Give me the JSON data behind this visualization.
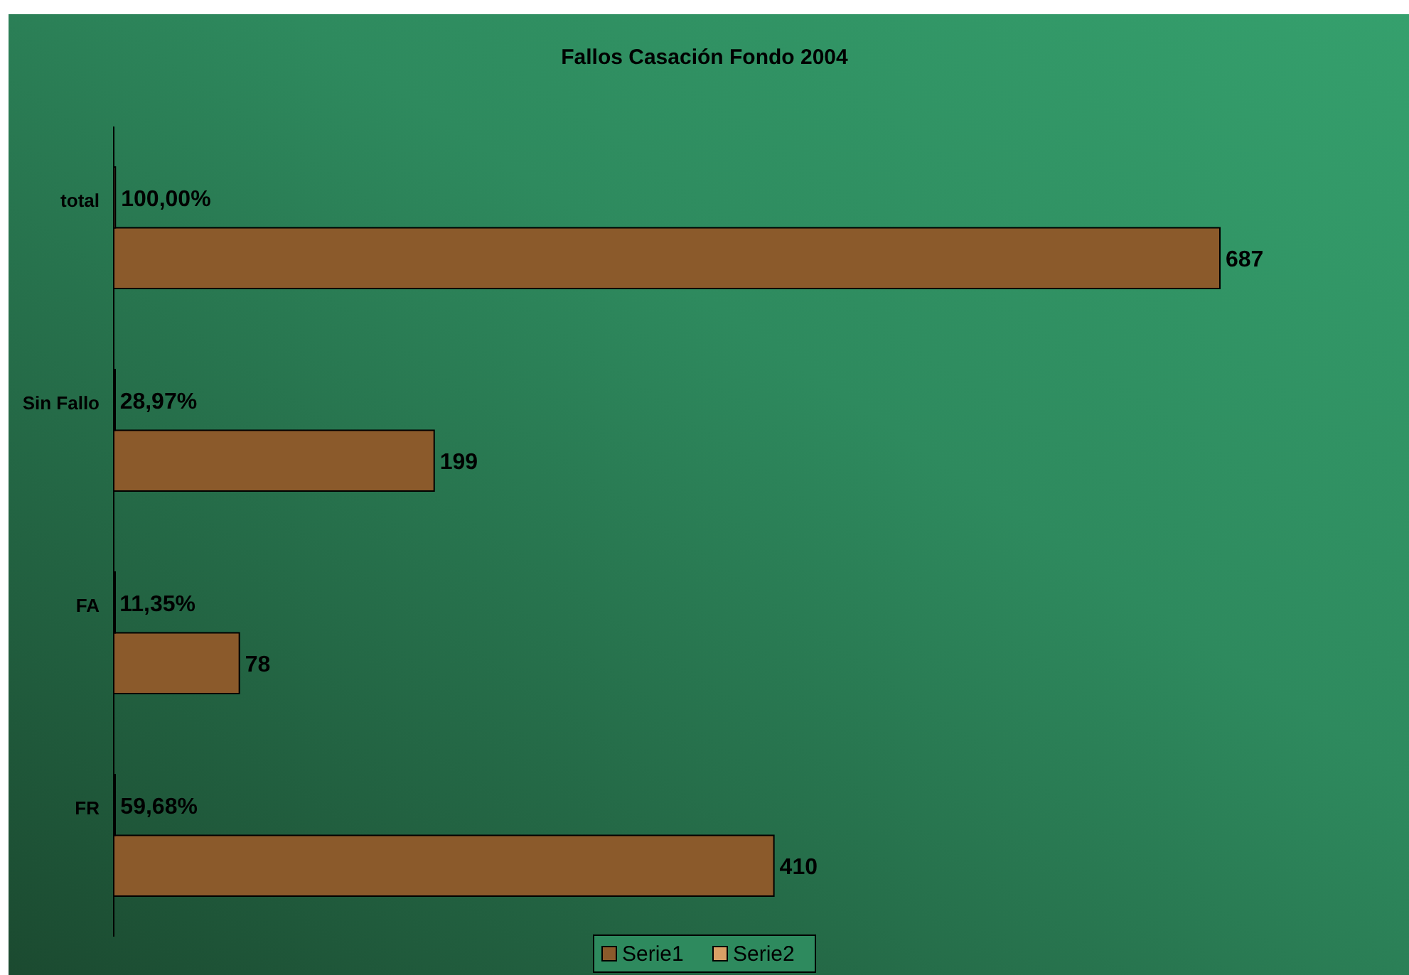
{
  "chart_data": {
    "type": "bar",
    "orientation": "horizontal",
    "title": "Fallos Casación Fondo 2004",
    "categories": [
      "total",
      "Sin Fallo",
      "FA",
      "FR"
    ],
    "tick_labels": "y",
    "legend": "bottom",
    "grid": false,
    "series": [
      {
        "name": "Serie1",
        "color": "#8b5a2b",
        "values": [
          687,
          199,
          78,
          410
        ],
        "value_labels": [
          "687",
          "199",
          "78",
          "410"
        ]
      },
      {
        "name": "Serie2",
        "color": "#d9a066",
        "values": [
          1,
          0.2897,
          0.1135,
          0.5968
        ],
        "value_labels": [
          "100,00%",
          "28,97%",
          "11,35%",
          "59,68%"
        ]
      }
    ]
  }
}
